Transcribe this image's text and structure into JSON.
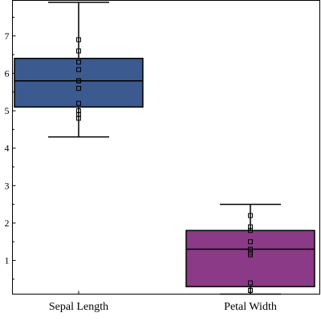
{
  "chart_data": {
    "type": "box",
    "title": "",
    "xlabel": "",
    "ylabel": "",
    "ylim": [
      0.1,
      7.95
    ],
    "yticks": [
      1,
      2,
      3,
      4,
      5,
      6,
      7
    ],
    "grid": false,
    "legend": "none",
    "categories": [
      "Sepal Length",
      "Petal Width"
    ],
    "boxes": [
      {
        "category": "Sepal Length",
        "color": "#3b5a8f",
        "whisker_low": 4.3,
        "q1": 5.1,
        "median": 5.8,
        "q3": 6.4,
        "whisker_high": 7.9,
        "points": [
          6.9,
          6.6,
          6.3,
          6.1,
          5.8,
          5.8,
          5.6,
          5.2,
          5.0,
          4.9,
          4.8
        ]
      },
      {
        "category": "Petal Width",
        "color": "#8b3a87",
        "whisker_low": 0.1,
        "q1": 0.3,
        "median": 1.3,
        "q3": 1.8,
        "whisker_high": 2.5,
        "points": [
          2.2,
          1.9,
          1.8,
          1.5,
          1.3,
          1.2,
          1.15,
          0.4,
          0.2,
          0.2
        ]
      }
    ]
  }
}
